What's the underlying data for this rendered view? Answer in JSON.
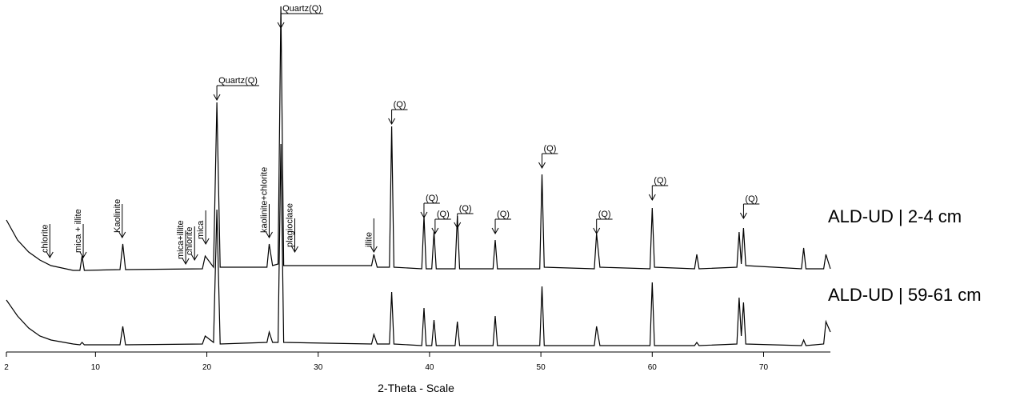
{
  "chart_data": {
    "type": "line",
    "xlabel": "2-Theta - Scale",
    "xlim": [
      2,
      76
    ],
    "ylim": [
      0,
      440
    ],
    "xticks": [
      2,
      10,
      20,
      30,
      40,
      50,
      60,
      70
    ],
    "x": [
      2,
      3,
      4,
      5,
      6,
      8,
      8.6,
      8.8,
      9.0,
      12.2,
      12.45,
      12.7,
      19.6,
      19.85,
      20.6,
      20.9,
      21.2,
      25.4,
      25.6,
      25.9,
      26.4,
      26.65,
      26.9,
      34.8,
      35.0,
      35.3,
      36.4,
      36.6,
      36.8,
      39.3,
      39.5,
      39.7,
      40.2,
      40.4,
      40.6,
      42.3,
      42.5,
      42.7,
      45.7,
      45.9,
      46.1,
      49.9,
      50.1,
      50.3,
      54.8,
      55.0,
      55.3,
      59.8,
      60.0,
      60.2,
      63.8,
      64.0,
      64.2,
      67.6,
      67.8,
      68.0,
      68.2,
      68.4,
      73.4,
      73.6,
      73.8,
      75.4,
      75.6,
      76
    ],
    "series": [
      {
        "name": "ALD-UD | 2-4 cm",
        "color": "#000000",
        "values": [
          165,
          140,
          125,
          115,
          108,
          102,
          102,
          120,
          102,
          103,
          135,
          103,
          104,
          120,
          106,
          312,
          106,
          106,
          135,
          108,
          110,
          432,
          108,
          108,
          122,
          106,
          106,
          282,
          106,
          104,
          170,
          104,
          104,
          150,
          104,
          104,
          170,
          104,
          104,
          140,
          104,
          104,
          222,
          106,
          104,
          148,
          106,
          104,
          180,
          106,
          104,
          122,
          104,
          106,
          150,
          110,
          155,
          108,
          104,
          130,
          104,
          104,
          122,
          104
        ]
      },
      {
        "name": "ALD-UD | 59-61 cm",
        "color": "#000000",
        "values": [
          65,
          45,
          30,
          20,
          15,
          10,
          9,
          12,
          9,
          9,
          32,
          9,
          10,
          20,
          12,
          178,
          10,
          12,
          25,
          12,
          12,
          260,
          12,
          10,
          22,
          10,
          10,
          75,
          10,
          8,
          55,
          8,
          8,
          40,
          8,
          8,
          38,
          8,
          8,
          45,
          8,
          8,
          82,
          8,
          8,
          32,
          8,
          8,
          87,
          8,
          8,
          12,
          8,
          10,
          68,
          20,
          62,
          10,
          8,
          15,
          8,
          10,
          38,
          25
        ]
      }
    ],
    "annotations": [
      {
        "text": "chlorite",
        "x": 5.9,
        "y": 118,
        "rotated": true
      },
      {
        "text": "mica + illite",
        "x": 8.9,
        "y": 118,
        "rotated": true
      },
      {
        "text": "Kaolinite",
        "x": 12.4,
        "y": 143,
        "rotated": true
      },
      {
        "text": "mica+illite",
        "x": 18.1,
        "y": 110,
        "rotated": true
      },
      {
        "text": "chlorite",
        "x": 18.9,
        "y": 115,
        "rotated": true
      },
      {
        "text": "mica",
        "x": 19.9,
        "y": 135,
        "rotated": true
      },
      {
        "text": "Quartz(Q)",
        "x": 20.9,
        "y": 315,
        "rotated": false
      },
      {
        "text": "kaolinite+chlorite",
        "x": 25.6,
        "y": 143,
        "rotated": true
      },
      {
        "text": "plagioclase",
        "x": 27.9,
        "y": 125,
        "rotated": true
      },
      {
        "text": "Quartz(Q)",
        "x": 26.65,
        "y": 405,
        "rotated": false
      },
      {
        "text": "illite",
        "x": 35.0,
        "y": 125,
        "rotated": true
      },
      {
        "text": "(Q)",
        "x": 36.6,
        "y": 285,
        "rotated": false
      },
      {
        "text": "(Q)",
        "x": 39.5,
        "y": 168,
        "rotated": false
      },
      {
        "text": "(Q)",
        "x": 40.5,
        "y": 148,
        "rotated": false
      },
      {
        "text": "(Q)",
        "x": 42.5,
        "y": 155,
        "rotated": false
      },
      {
        "text": "(Q)",
        "x": 45.9,
        "y": 148,
        "rotated": false
      },
      {
        "text": "(Q)",
        "x": 50.1,
        "y": 230,
        "rotated": false
      },
      {
        "text": "(Q)",
        "x": 55.0,
        "y": 148,
        "rotated": false
      },
      {
        "text": "(Q)",
        "x": 60.0,
        "y": 190,
        "rotated": false
      },
      {
        "text": "(Q)",
        "x": 68.2,
        "y": 167,
        "rotated": false
      }
    ]
  }
}
